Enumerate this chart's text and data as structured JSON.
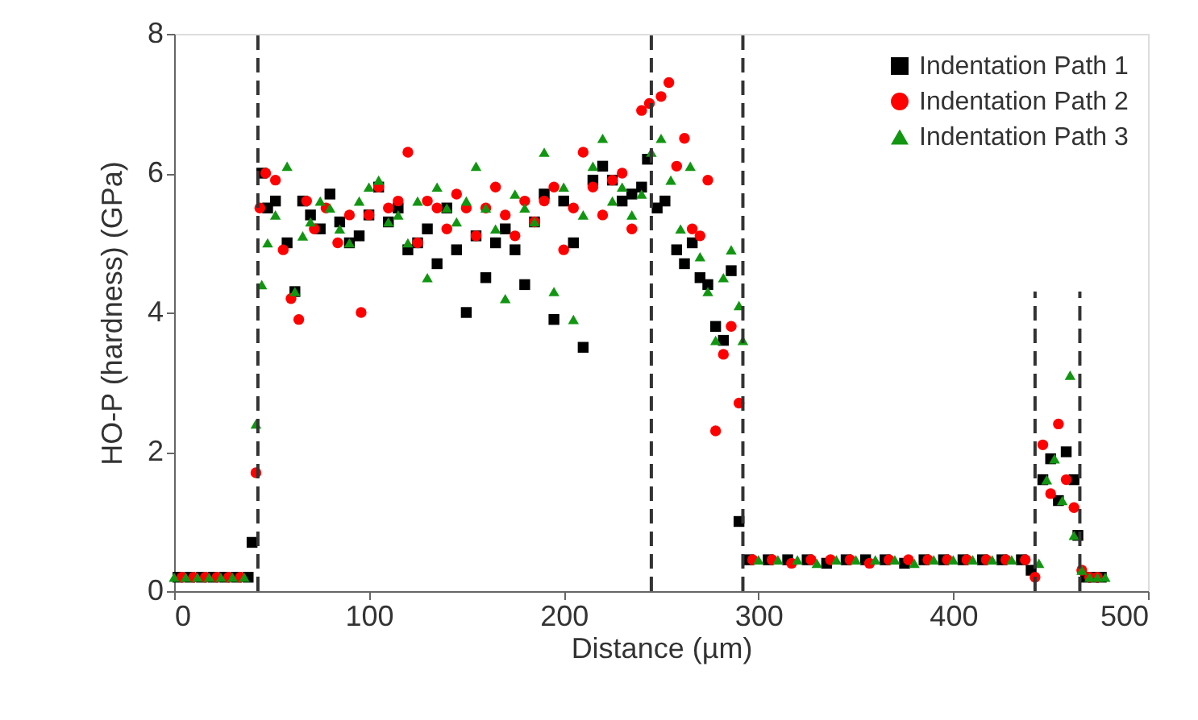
{
  "chart_data": {
    "type": "scatter",
    "xlabel": "Distance (µm)",
    "ylabel": "HO-P (hardness)  (GPa)",
    "xlim": [
      0,
      500
    ],
    "xticks": [
      0,
      100,
      200,
      300,
      400,
      500
    ],
    "ylim": [
      0,
      8
    ],
    "yticks": [
      0,
      2,
      4,
      6,
      8
    ],
    "grid": false,
    "legend": "top right",
    "series": [
      {
        "name": "Indentation Path 1",
        "color": "#000000",
        "marker": "square",
        "x": [
          2,
          8,
          14,
          20,
          26,
          32,
          38,
          40,
          45,
          48,
          52,
          58,
          62,
          66,
          70,
          75,
          80,
          85,
          90,
          95,
          100,
          105,
          110,
          115,
          120,
          125,
          130,
          135,
          140,
          145,
          150,
          155,
          160,
          165,
          170,
          175,
          180,
          185,
          190,
          195,
          200,
          205,
          210,
          215,
          220,
          225,
          230,
          235,
          240,
          243,
          248,
          252,
          258,
          262,
          266,
          270,
          274,
          278,
          282,
          286,
          290,
          295,
          305,
          315,
          325,
          335,
          345,
          355,
          365,
          375,
          385,
          395,
          405,
          415,
          425,
          435,
          440,
          446,
          450,
          454,
          458,
          462,
          464,
          468,
          472,
          476
        ],
        "values": [
          0.2,
          0.2,
          0.2,
          0.2,
          0.2,
          0.2,
          0.2,
          0.7,
          6.0,
          5.5,
          5.6,
          5.0,
          4.3,
          5.6,
          5.4,
          5.2,
          5.7,
          5.3,
          5.0,
          5.1,
          5.4,
          5.8,
          5.3,
          5.5,
          4.9,
          5.0,
          5.2,
          4.7,
          5.5,
          4.9,
          4.0,
          5.1,
          4.5,
          5.0,
          5.2,
          4.9,
          4.4,
          5.3,
          5.7,
          3.9,
          5.6,
          5.0,
          3.5,
          5.9,
          6.1,
          5.9,
          5.6,
          5.7,
          5.8,
          6.2,
          5.5,
          5.6,
          4.9,
          4.7,
          5.0,
          4.5,
          4.4,
          3.8,
          3.6,
          4.6,
          1.0,
          0.45,
          0.45,
          0.45,
          0.45,
          0.4,
          0.45,
          0.45,
          0.45,
          0.4,
          0.45,
          0.45,
          0.45,
          0.45,
          0.45,
          0.45,
          0.3,
          1.6,
          1.9,
          1.3,
          2.0,
          1.6,
          0.8,
          0.2,
          0.2,
          0.2
        ]
      },
      {
        "name": "Indentation Path 2",
        "color": "#ff0000",
        "marker": "circle",
        "x": [
          4,
          10,
          16,
          22,
          28,
          34,
          42,
          44,
          47,
          52,
          56,
          60,
          64,
          68,
          72,
          78,
          84,
          90,
          96,
          100,
          105,
          110,
          115,
          120,
          125,
          130,
          135,
          140,
          145,
          150,
          155,
          160,
          165,
          170,
          175,
          180,
          185,
          190,
          195,
          200,
          205,
          210,
          215,
          220,
          225,
          230,
          235,
          240,
          244,
          250,
          254,
          258,
          262,
          266,
          270,
          274,
          278,
          282,
          286,
          290,
          297,
          307,
          317,
          327,
          337,
          347,
          357,
          367,
          377,
          387,
          397,
          407,
          417,
          427,
          437,
          442,
          446,
          450,
          454,
          458,
          462,
          466,
          470,
          474
        ],
        "values": [
          0.2,
          0.2,
          0.2,
          0.2,
          0.2,
          0.2,
          1.7,
          5.5,
          6.0,
          5.9,
          4.9,
          4.2,
          3.9,
          5.6,
          5.2,
          5.5,
          5.0,
          5.4,
          4.0,
          5.4,
          5.8,
          5.5,
          5.6,
          6.3,
          5.0,
          5.6,
          5.5,
          5.2,
          5.7,
          5.5,
          5.1,
          5.5,
          5.8,
          5.4,
          5.1,
          5.6,
          5.3,
          5.6,
          5.8,
          4.9,
          5.5,
          6.3,
          5.8,
          5.4,
          5.9,
          6.0,
          5.2,
          6.9,
          7.0,
          7.1,
          7.3,
          6.1,
          6.5,
          5.2,
          5.1,
          5.9,
          2.3,
          3.4,
          3.8,
          2.7,
          0.45,
          0.45,
          0.4,
          0.45,
          0.45,
          0.45,
          0.4,
          0.45,
          0.45,
          0.45,
          0.45,
          0.45,
          0.45,
          0.45,
          0.45,
          0.2,
          2.1,
          1.4,
          2.4,
          1.6,
          1.2,
          0.3,
          0.2,
          0.2
        ]
      },
      {
        "name": "Indentation Path 3",
        "color": "#129612",
        "marker": "triangle",
        "x": [
          0,
          6,
          12,
          18,
          24,
          30,
          36,
          42,
          45,
          48,
          52,
          58,
          62,
          66,
          70,
          75,
          80,
          85,
          90,
          95,
          100,
          105,
          110,
          115,
          120,
          125,
          130,
          135,
          140,
          145,
          150,
          155,
          160,
          165,
          170,
          175,
          180,
          185,
          190,
          195,
          200,
          205,
          210,
          215,
          220,
          225,
          230,
          235,
          240,
          245,
          250,
          255,
          260,
          265,
          270,
          274,
          278,
          282,
          286,
          290,
          292,
          300,
          310,
          320,
          330,
          340,
          350,
          360,
          370,
          380,
          390,
          400,
          410,
          420,
          430,
          444,
          448,
          452,
          456,
          460,
          462,
          466,
          470,
          474,
          478
        ],
        "values": [
          0.2,
          0.2,
          0.2,
          0.2,
          0.2,
          0.2,
          0.2,
          2.4,
          4.4,
          5.0,
          5.4,
          6.1,
          4.3,
          5.1,
          5.3,
          5.6,
          5.5,
          5.2,
          5.0,
          5.6,
          5.8,
          5.9,
          5.3,
          5.4,
          5.0,
          5.6,
          4.5,
          5.8,
          5.5,
          5.3,
          5.6,
          6.1,
          5.5,
          5.2,
          4.2,
          5.7,
          5.5,
          5.3,
          6.3,
          4.3,
          5.8,
          3.9,
          5.4,
          6.1,
          6.5,
          5.6,
          5.8,
          5.4,
          5.7,
          6.3,
          6.5,
          5.9,
          5.2,
          6.1,
          4.8,
          4.3,
          3.6,
          4.5,
          4.9,
          4.1,
          3.6,
          0.45,
          0.45,
          0.45,
          0.4,
          0.45,
          0.45,
          0.45,
          0.45,
          0.4,
          0.45,
          0.45,
          0.45,
          0.45,
          0.45,
          0.4,
          1.6,
          1.9,
          1.3,
          3.1,
          0.8,
          0.3,
          0.2,
          0.2,
          0.2
        ]
      },
      {
        "type": "line",
        "color": "#333333",
        "line_style": "dashed",
        "marker": "none",
        "x": [
          442,
          442
        ],
        "values": [
          0,
          4.3
        ]
      },
      {
        "type": "line",
        "color": "#333333",
        "line_style": "dashed",
        "marker": "none",
        "x": [
          465,
          465
        ],
        "values": [
          0,
          4.3
        ]
      }
    ],
    "ref_lines": [
      {
        "axis": "x",
        "value": 43,
        "line_style": "dashed",
        "color": "#333333"
      },
      {
        "axis": "x",
        "value": 245,
        "line_style": "dashed",
        "color": "#333333"
      },
      {
        "axis": "x",
        "value": 292,
        "line_style": "dashed",
        "color": "#333333"
      }
    ]
  }
}
